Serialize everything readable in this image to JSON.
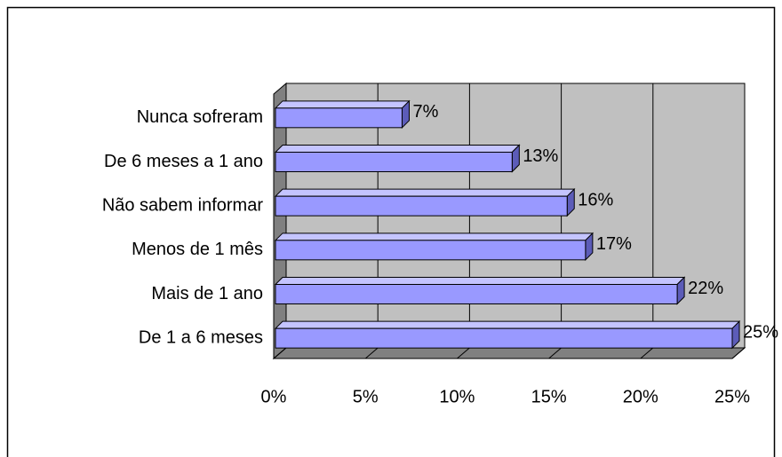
{
  "chart_data": {
    "type": "bar3d",
    "categories": [
      "Nunca sofreram",
      "De 6 meses a 1 ano",
      "Não sabem informar",
      "Menos de 1 mês",
      "Mais de 1 ano",
      "De 1 a 6 meses"
    ],
    "values": [
      7,
      13,
      16,
      17,
      22,
      25
    ],
    "value_labels": [
      "7%",
      "13%",
      "16%",
      "17%",
      "22%",
      "25%"
    ],
    "color": "#9999ff",
    "xlim": [
      0,
      25
    ],
    "xticks": [
      {
        "value": 0,
        "label": "0%"
      },
      {
        "value": 5,
        "label": "5%"
      },
      {
        "value": 10,
        "label": "10%"
      },
      {
        "value": 15,
        "label": "15%"
      },
      {
        "value": 20,
        "label": "20%"
      },
      {
        "value": 25,
        "label": "25%"
      }
    ],
    "grid": true
  }
}
